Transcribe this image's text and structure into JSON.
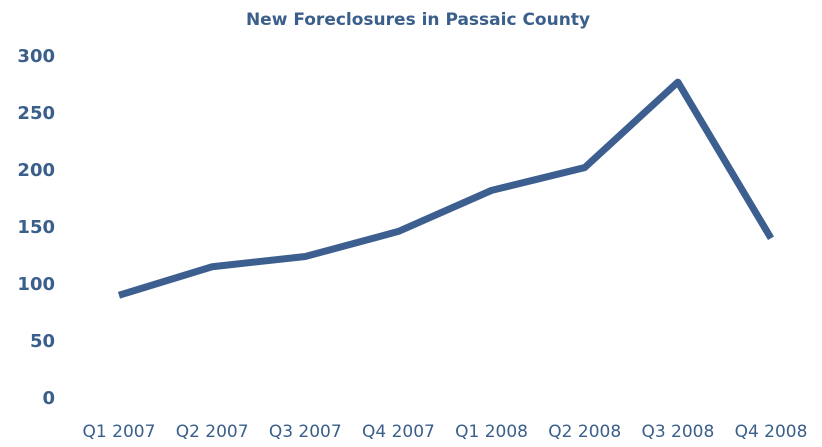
{
  "chart_data": {
    "type": "line",
    "title": "New Foreclosures in Passaic County",
    "categories": [
      "Q1 2007",
      "Q2 2007",
      "Q3 2007",
      "Q4 2007",
      "Q1 2008",
      "Q2 2008",
      "Q3 2008",
      "Q4 2008"
    ],
    "series": [
      {
        "name": "New Foreclosures",
        "color": "#3c5f8f",
        "values": [
          91,
          116,
          125,
          147,
          183,
          203,
          278,
          141
        ]
      }
    ],
    "ylim": [
      0,
      300
    ],
    "yticks": [
      0,
      50,
      100,
      150,
      200,
      250,
      300
    ],
    "grid": false,
    "legend": false
  }
}
